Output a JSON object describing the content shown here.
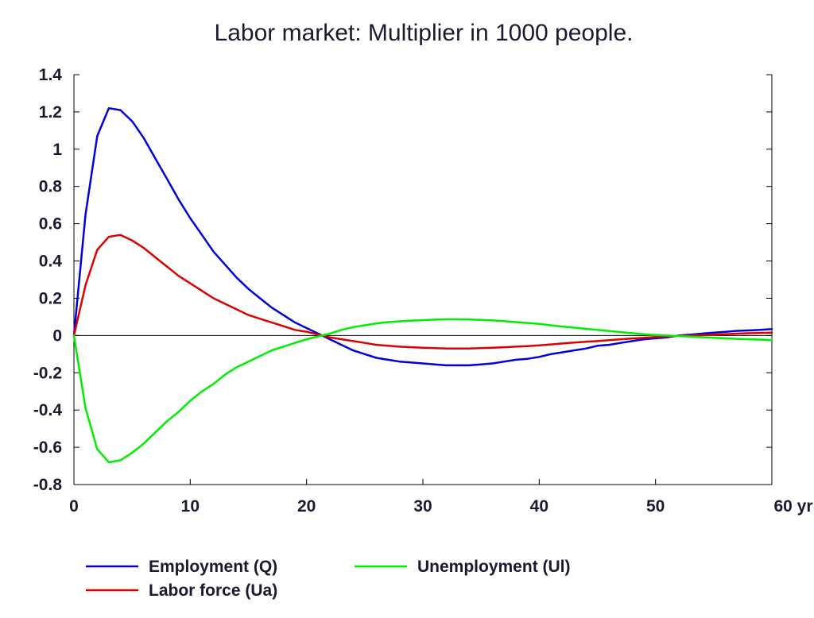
{
  "chart_data": {
    "type": "line",
    "title": "Labor market: Multiplier in 1000 people.",
    "xlabel": "",
    "ylabel": "",
    "x_unit_suffix": "yr",
    "xlim": [
      0,
      60
    ],
    "ylim": [
      -0.8,
      1.4
    ],
    "x_ticks": [
      0,
      10,
      20,
      30,
      40,
      50,
      60
    ],
    "y_ticks": [
      1.4,
      1.2,
      1,
      0.8,
      0.6,
      0.4,
      0.2,
      0,
      -0.2,
      -0.4,
      -0.6,
      -0.8
    ],
    "grid": false,
    "legend_position": "bottom",
    "x": [
      0,
      1,
      2,
      3,
      4,
      5,
      6,
      7,
      8,
      9,
      10,
      11,
      12,
      13,
      14,
      15,
      16,
      17,
      18,
      19,
      20,
      21,
      22,
      23,
      24,
      25,
      26,
      27,
      28,
      29,
      30,
      31,
      32,
      33,
      34,
      35,
      36,
      37,
      38,
      39,
      40,
      41,
      42,
      43,
      44,
      45,
      46,
      47,
      48,
      49,
      50,
      51,
      52,
      53,
      54,
      55,
      56,
      57,
      58,
      59,
      60
    ],
    "series": [
      {
        "name": "Employment (Q)",
        "color": "#0000dd",
        "values": [
          0,
          0.65,
          1.07,
          1.22,
          1.21,
          1.15,
          1.06,
          0.95,
          0.84,
          0.73,
          0.63,
          0.54,
          0.45,
          0.38,
          0.31,
          0.25,
          0.2,
          0.15,
          0.11,
          0.07,
          0.04,
          0.01,
          -0.02,
          -0.05,
          -0.08,
          -0.1,
          -0.12,
          -0.13,
          -0.14,
          -0.145,
          -0.15,
          -0.155,
          -0.16,
          -0.16,
          -0.16,
          -0.155,
          -0.15,
          -0.14,
          -0.13,
          -0.125,
          -0.115,
          -0.1,
          -0.09,
          -0.08,
          -0.07,
          -0.055,
          -0.05,
          -0.04,
          -0.03,
          -0.02,
          -0.015,
          -0.01,
          0,
          0.005,
          0.01,
          0.015,
          0.02,
          0.025,
          0.027,
          0.03,
          0.035
        ]
      },
      {
        "name": "Labor force (Ua)",
        "color": "#dd0000",
        "values": [
          0,
          0.27,
          0.46,
          0.53,
          0.54,
          0.51,
          0.47,
          0.42,
          0.37,
          0.32,
          0.28,
          0.24,
          0.2,
          0.17,
          0.14,
          0.11,
          0.09,
          0.07,
          0.05,
          0.03,
          0.02,
          0.005,
          -0.01,
          -0.02,
          -0.03,
          -0.04,
          -0.05,
          -0.055,
          -0.06,
          -0.063,
          -0.066,
          -0.068,
          -0.07,
          -0.07,
          -0.07,
          -0.068,
          -0.066,
          -0.063,
          -0.06,
          -0.057,
          -0.053,
          -0.048,
          -0.043,
          -0.038,
          -0.034,
          -0.03,
          -0.025,
          -0.02,
          -0.016,
          -0.012,
          -0.008,
          -0.005,
          -0.002,
          0,
          0.002,
          0.005,
          0.007,
          0.01,
          0.012,
          0.014,
          0.015
        ]
      },
      {
        "name": "Unemployment (Ul)",
        "color": "#00ee00",
        "values": [
          0,
          -0.39,
          -0.61,
          -0.68,
          -0.67,
          -0.63,
          -0.58,
          -0.52,
          -0.46,
          -0.41,
          -0.35,
          -0.3,
          -0.26,
          -0.21,
          -0.17,
          -0.14,
          -0.11,
          -0.08,
          -0.06,
          -0.04,
          -0.02,
          -0.005,
          0.01,
          0.03,
          0.045,
          0.055,
          0.065,
          0.072,
          0.076,
          0.08,
          0.082,
          0.085,
          0.087,
          0.087,
          0.086,
          0.084,
          0.081,
          0.077,
          0.072,
          0.067,
          0.062,
          0.055,
          0.048,
          0.042,
          0.036,
          0.03,
          0.024,
          0.018,
          0.012,
          0.007,
          0.003,
          0,
          -0.003,
          -0.006,
          -0.009,
          -0.012,
          -0.015,
          -0.018,
          -0.02,
          -0.022,
          -0.025
        ]
      }
    ]
  }
}
